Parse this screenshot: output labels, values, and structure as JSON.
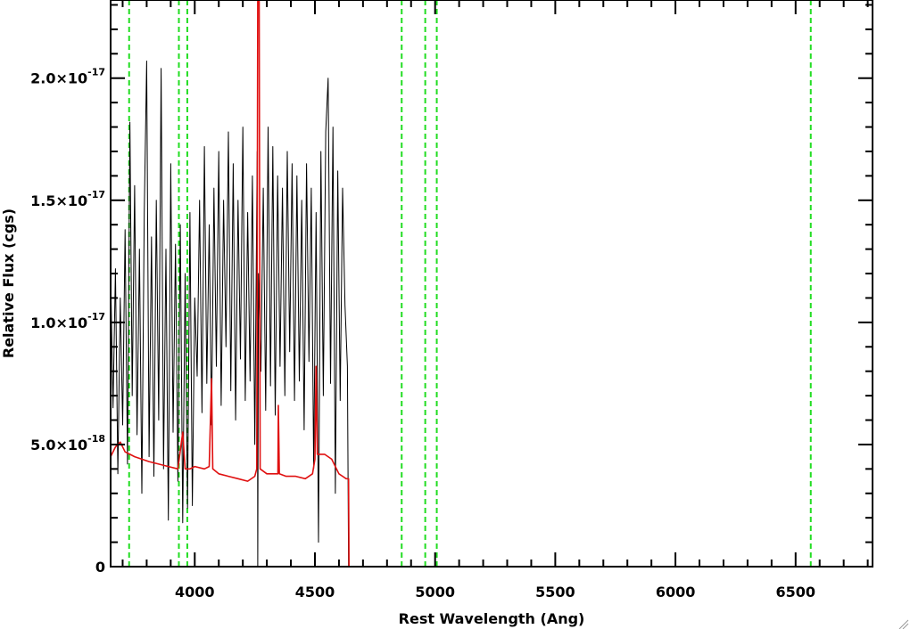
{
  "chart_data": {
    "type": "line",
    "xlabel": "Rest Wavelength (Ang)",
    "ylabel": "Relative Flux (cgs)",
    "xlim": [
      3650,
      6820
    ],
    "ylim": [
      0,
      2.32e-17
    ],
    "x_ticks": [
      {
        "value": 4000,
        "label": "4000"
      },
      {
        "value": 4500,
        "label": "4500"
      },
      {
        "value": 5000,
        "label": "5000"
      },
      {
        "value": 5500,
        "label": "5500"
      },
      {
        "value": 6000,
        "label": "6000"
      },
      {
        "value": 6500,
        "label": "6500"
      }
    ],
    "y_ticks": [
      {
        "value": 0,
        "mantissa": "0",
        "exponent": ""
      },
      {
        "value": 5e-18,
        "mantissa": "5.0×10",
        "exponent": "-18"
      },
      {
        "value": 1e-17,
        "mantissa": "1.0×10",
        "exponent": "-17"
      },
      {
        "value": 1.5e-17,
        "mantissa": "1.5×10",
        "exponent": "-17"
      },
      {
        "value": 2e-17,
        "mantissa": "2.0×10",
        "exponent": "-17"
      }
    ],
    "reference_lines": [
      3727,
      3934,
      3969,
      4861,
      4959,
      5007,
      6563
    ],
    "series": [
      {
        "color": "#000000",
        "points": [
          [
            3650,
            1.2e-17
          ],
          [
            3660,
            6.5e-18
          ],
          [
            3670,
            1.22e-17
          ],
          [
            3680,
            3.8e-18
          ],
          [
            3690,
            1.1e-17
          ],
          [
            3700,
            5.8e-18
          ],
          [
            3710,
            1.38e-17
          ],
          [
            3720,
            4.2e-18
          ],
          [
            3730,
            1.82e-17
          ],
          [
            3740,
            7e-18
          ],
          [
            3750,
            1.56e-17
          ],
          [
            3760,
            5.4e-18
          ],
          [
            3770,
            1.3e-17
          ],
          [
            3780,
            3e-18
          ],
          [
            3790,
            1.45e-17
          ],
          [
            3800,
            2.07e-17
          ],
          [
            3810,
            4.5e-18
          ],
          [
            3820,
            1.35e-17
          ],
          [
            3830,
            3.7e-18
          ],
          [
            3840,
            1.5e-17
          ],
          [
            3850,
            6e-18
          ],
          [
            3860,
            2.04e-17
          ],
          [
            3870,
            4e-18
          ],
          [
            3880,
            1.3e-17
          ],
          [
            3890,
            1.9e-18
          ],
          [
            3900,
            1.65e-17
          ],
          [
            3910,
            5.5e-18
          ],
          [
            3920,
            1.32e-17
          ],
          [
            3930,
            3.5e-18
          ],
          [
            3940,
            1.4e-17
          ],
          [
            3950,
            1.8e-18
          ],
          [
            3960,
            1.2e-17
          ],
          [
            3970,
            2.4e-18
          ],
          [
            3980,
            1.45e-17
          ],
          [
            3990,
            2.5e-18
          ],
          [
            4000,
            1.1e-17
          ],
          [
            4010,
            7.8e-18
          ],
          [
            4020,
            1.5e-17
          ],
          [
            4030,
            6.3e-18
          ],
          [
            4040,
            1.72e-17
          ],
          [
            4050,
            7.5e-18
          ],
          [
            4060,
            1.4e-17
          ],
          [
            4070,
            5.8e-18
          ],
          [
            4080,
            1.55e-17
          ],
          [
            4090,
            8.2e-18
          ],
          [
            4100,
            1.7e-17
          ],
          [
            4110,
            6.6e-18
          ],
          [
            4120,
            1.5e-17
          ],
          [
            4130,
            9e-18
          ],
          [
            4140,
            1.78e-17
          ],
          [
            4150,
            7.2e-18
          ],
          [
            4160,
            1.65e-17
          ],
          [
            4170,
            6e-18
          ],
          [
            4180,
            1.5e-17
          ],
          [
            4190,
            8.5e-18
          ],
          [
            4200,
            1.8e-17
          ],
          [
            4210,
            6.8e-18
          ],
          [
            4220,
            1.45e-17
          ],
          [
            4230,
            7.6e-18
          ],
          [
            4240,
            1.6e-17
          ],
          [
            4250,
            5e-18
          ],
          [
            4260,
            1.7e-17
          ],
          [
            4262,
            0
          ],
          [
            4265,
            1.2e-17
          ],
          [
            4275,
            8e-18
          ],
          [
            4285,
            1.55e-17
          ],
          [
            4295,
            6.4e-18
          ],
          [
            4305,
            1.8e-17
          ],
          [
            4315,
            7.4e-18
          ],
          [
            4325,
            1.72e-17
          ],
          [
            4335,
            6.2e-18
          ],
          [
            4345,
            1.6e-17
          ],
          [
            4355,
            8.2e-18
          ],
          [
            4365,
            1.55e-17
          ],
          [
            4375,
            7e-18
          ],
          [
            4385,
            1.7e-17
          ],
          [
            4395,
            8.8e-18
          ],
          [
            4405,
            1.65e-17
          ],
          [
            4415,
            6.8e-18
          ],
          [
            4425,
            1.6e-17
          ],
          [
            4435,
            7.6e-18
          ],
          [
            4445,
            1.5e-17
          ],
          [
            4455,
            5.6e-18
          ],
          [
            4465,
            1.65e-17
          ],
          [
            4475,
            8.4e-18
          ],
          [
            4485,
            1.55e-17
          ],
          [
            4495,
            4e-18
          ],
          [
            4505,
            1.45e-17
          ],
          [
            4515,
            1e-18
          ],
          [
            4525,
            1.7e-17
          ],
          [
            4535,
            7e-18
          ],
          [
            4545,
            1.78e-17
          ],
          [
            4555,
            2e-17
          ],
          [
            4565,
            7.5e-18
          ],
          [
            4575,
            1.8e-17
          ],
          [
            4585,
            3e-18
          ],
          [
            4595,
            1.62e-17
          ],
          [
            4605,
            6.8e-18
          ],
          [
            4615,
            1.55e-17
          ],
          [
            4625,
            1.07e-17
          ],
          [
            4635,
            8.2e-18
          ],
          [
            4640,
            0
          ]
        ]
      },
      {
        "color": "#e01010",
        "points": [
          [
            3650,
            4.5e-18
          ],
          [
            3670,
            4.9e-18
          ],
          [
            3690,
            5.1e-18
          ],
          [
            3710,
            4.7e-18
          ],
          [
            3730,
            4.6e-18
          ],
          [
            3750,
            4.5e-18
          ],
          [
            3780,
            4.4e-18
          ],
          [
            3810,
            4.3e-18
          ],
          [
            3850,
            4.2e-18
          ],
          [
            3890,
            4.1e-18
          ],
          [
            3930,
            4e-18
          ],
          [
            3950,
            5.5e-18
          ],
          [
            3960,
            4e-18
          ],
          [
            3980,
            4e-18
          ],
          [
            4000,
            4.1e-18
          ],
          [
            4040,
            4e-18
          ],
          [
            4060,
            4.1e-18
          ],
          [
            4070,
            7.7e-18
          ],
          [
            4075,
            4e-18
          ],
          [
            4100,
            3.8e-18
          ],
          [
            4140,
            3.7e-18
          ],
          [
            4180,
            3.6e-18
          ],
          [
            4220,
            3.5e-18
          ],
          [
            4250,
            3.7e-18
          ],
          [
            4258,
            4e-18
          ],
          [
            4262,
            2.32e-17
          ],
          [
            4268,
            2.32e-17
          ],
          [
            4272,
            4e-18
          ],
          [
            4300,
            3.8e-18
          ],
          [
            4330,
            3.8e-18
          ],
          [
            4346,
            3.8e-18
          ],
          [
            4348,
            6.6e-18
          ],
          [
            4352,
            3.8e-18
          ],
          [
            4380,
            3.7e-18
          ],
          [
            4420,
            3.7e-18
          ],
          [
            4460,
            3.6e-18
          ],
          [
            4490,
            3.8e-18
          ],
          [
            4500,
            4.4e-18
          ],
          [
            4505,
            8.2e-18
          ],
          [
            4510,
            4.6e-18
          ],
          [
            4540,
            4.6e-18
          ],
          [
            4570,
            4.4e-18
          ],
          [
            4600,
            3.8e-18
          ],
          [
            4630,
            3.6e-18
          ],
          [
            4640,
            3.6e-18
          ],
          [
            4642,
            0
          ],
          [
            6820,
            0
          ]
        ]
      }
    ]
  }
}
